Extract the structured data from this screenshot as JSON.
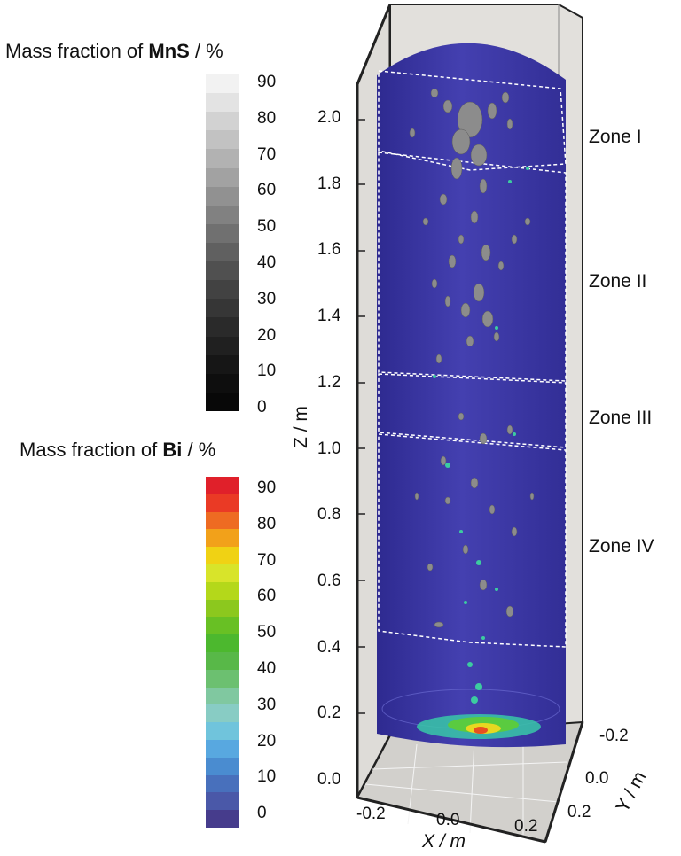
{
  "chart_data": {
    "type": "3d-volume-render",
    "mns_legend": {
      "title_prefix": "Mass fraction of ",
      "title_species": "MnS",
      "title_suffix": " / %",
      "ticks": [
        "90",
        "80",
        "70",
        "60",
        "50",
        "40",
        "30",
        "20",
        "10",
        "0"
      ],
      "colors": [
        "#f2f2f2",
        "#e3e3e3",
        "#d2d2d2",
        "#c2c2c2",
        "#b2b2b2",
        "#a2a2a2",
        "#919191",
        "#818181",
        "#707070",
        "#606060",
        "#505050",
        "#424242",
        "#363636",
        "#2a2a2a",
        "#202020",
        "#161616",
        "#0e0e0e",
        "#080808"
      ]
    },
    "bi_legend": {
      "title_prefix": "Mass fraction of ",
      "title_species": "Bi",
      "title_suffix": " / %",
      "ticks": [
        "90",
        "80",
        "70",
        "60",
        "50",
        "40",
        "30",
        "20",
        "10",
        "0"
      ],
      "colors": [
        "#e0202a",
        "#ea3a25",
        "#ee6b22",
        "#f2a11a",
        "#f0d214",
        "#d8e42a",
        "#b4d81a",
        "#8cc81e",
        "#68c024",
        "#4cb82e",
        "#58b848",
        "#6cc070",
        "#80c8a0",
        "#88ccc4",
        "#70c4dc",
        "#58a8e0",
        "#4a8cd0",
        "#4870bc",
        "#4a58a8",
        "#463c8c"
      ]
    },
    "z_axis": {
      "label": "Z / m",
      "ticks": [
        "2.0",
        "1.8",
        "1.6",
        "1.4",
        "1.2",
        "1.0",
        "0.8",
        "0.6",
        "0.4",
        "0.2",
        "0.0"
      ]
    },
    "x_axis": {
      "label": "X / m",
      "ticks": [
        "-0.2",
        "0.0",
        "0.2"
      ]
    },
    "y_axis": {
      "label": "Y / m",
      "ticks": [
        "-0.2",
        "0.0",
        "0.2"
      ]
    },
    "zones": [
      "Zone I",
      "Zone II",
      "Zone III",
      "Zone IV"
    ],
    "zone_boundaries_z": [
      2.0,
      1.88,
      1.22,
      1.02,
      0.35
    ],
    "colors": {
      "cylinder": "#3a36a0",
      "box_floor": "#cfcdca",
      "box_wall": "#dcdad6",
      "mns": "#8a8a8a",
      "bi": "#38c8a0"
    }
  }
}
